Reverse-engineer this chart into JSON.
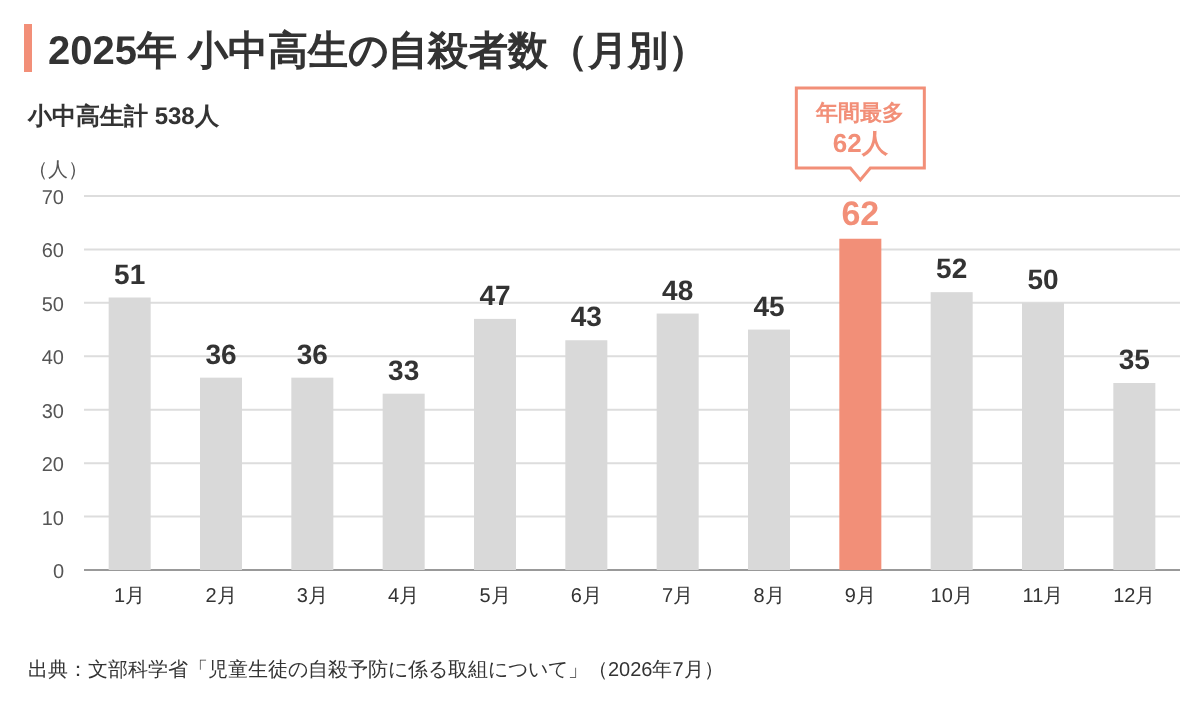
{
  "chart_data": {
    "type": "bar",
    "title": "2025年 小中高生の自殺者数（月別）",
    "subtitle": "小中高生計 538人",
    "ylabel": "（人）",
    "categories": [
      "1月",
      "2月",
      "3月",
      "4月",
      "5月",
      "6月",
      "7月",
      "8月",
      "9月",
      "10月",
      "11月",
      "12月"
    ],
    "values": [
      51,
      36,
      36,
      33,
      47,
      43,
      48,
      45,
      62,
      52,
      50,
      35
    ],
    "colors": [
      "#d9d9d9",
      "#d9d9d9",
      "#d9d9d9",
      "#d9d9d9",
      "#d9d9d9",
      "#d9d9d9",
      "#d9d9d9",
      "#d9d9d9",
      "#f28f78",
      "#d9d9d9",
      "#d9d9d9",
      "#d9d9d9"
    ],
    "ylim": [
      0,
      70
    ],
    "yticks": [
      0,
      10,
      20,
      30,
      40,
      50,
      60,
      70
    ],
    "grid": "y",
    "data_labels": true,
    "annotations": [
      "年間最多\n62人",
      "出典：文部科学省「児童生徒の自殺予防に係る取組について」（2026年7月）"
    ]
  }
}
